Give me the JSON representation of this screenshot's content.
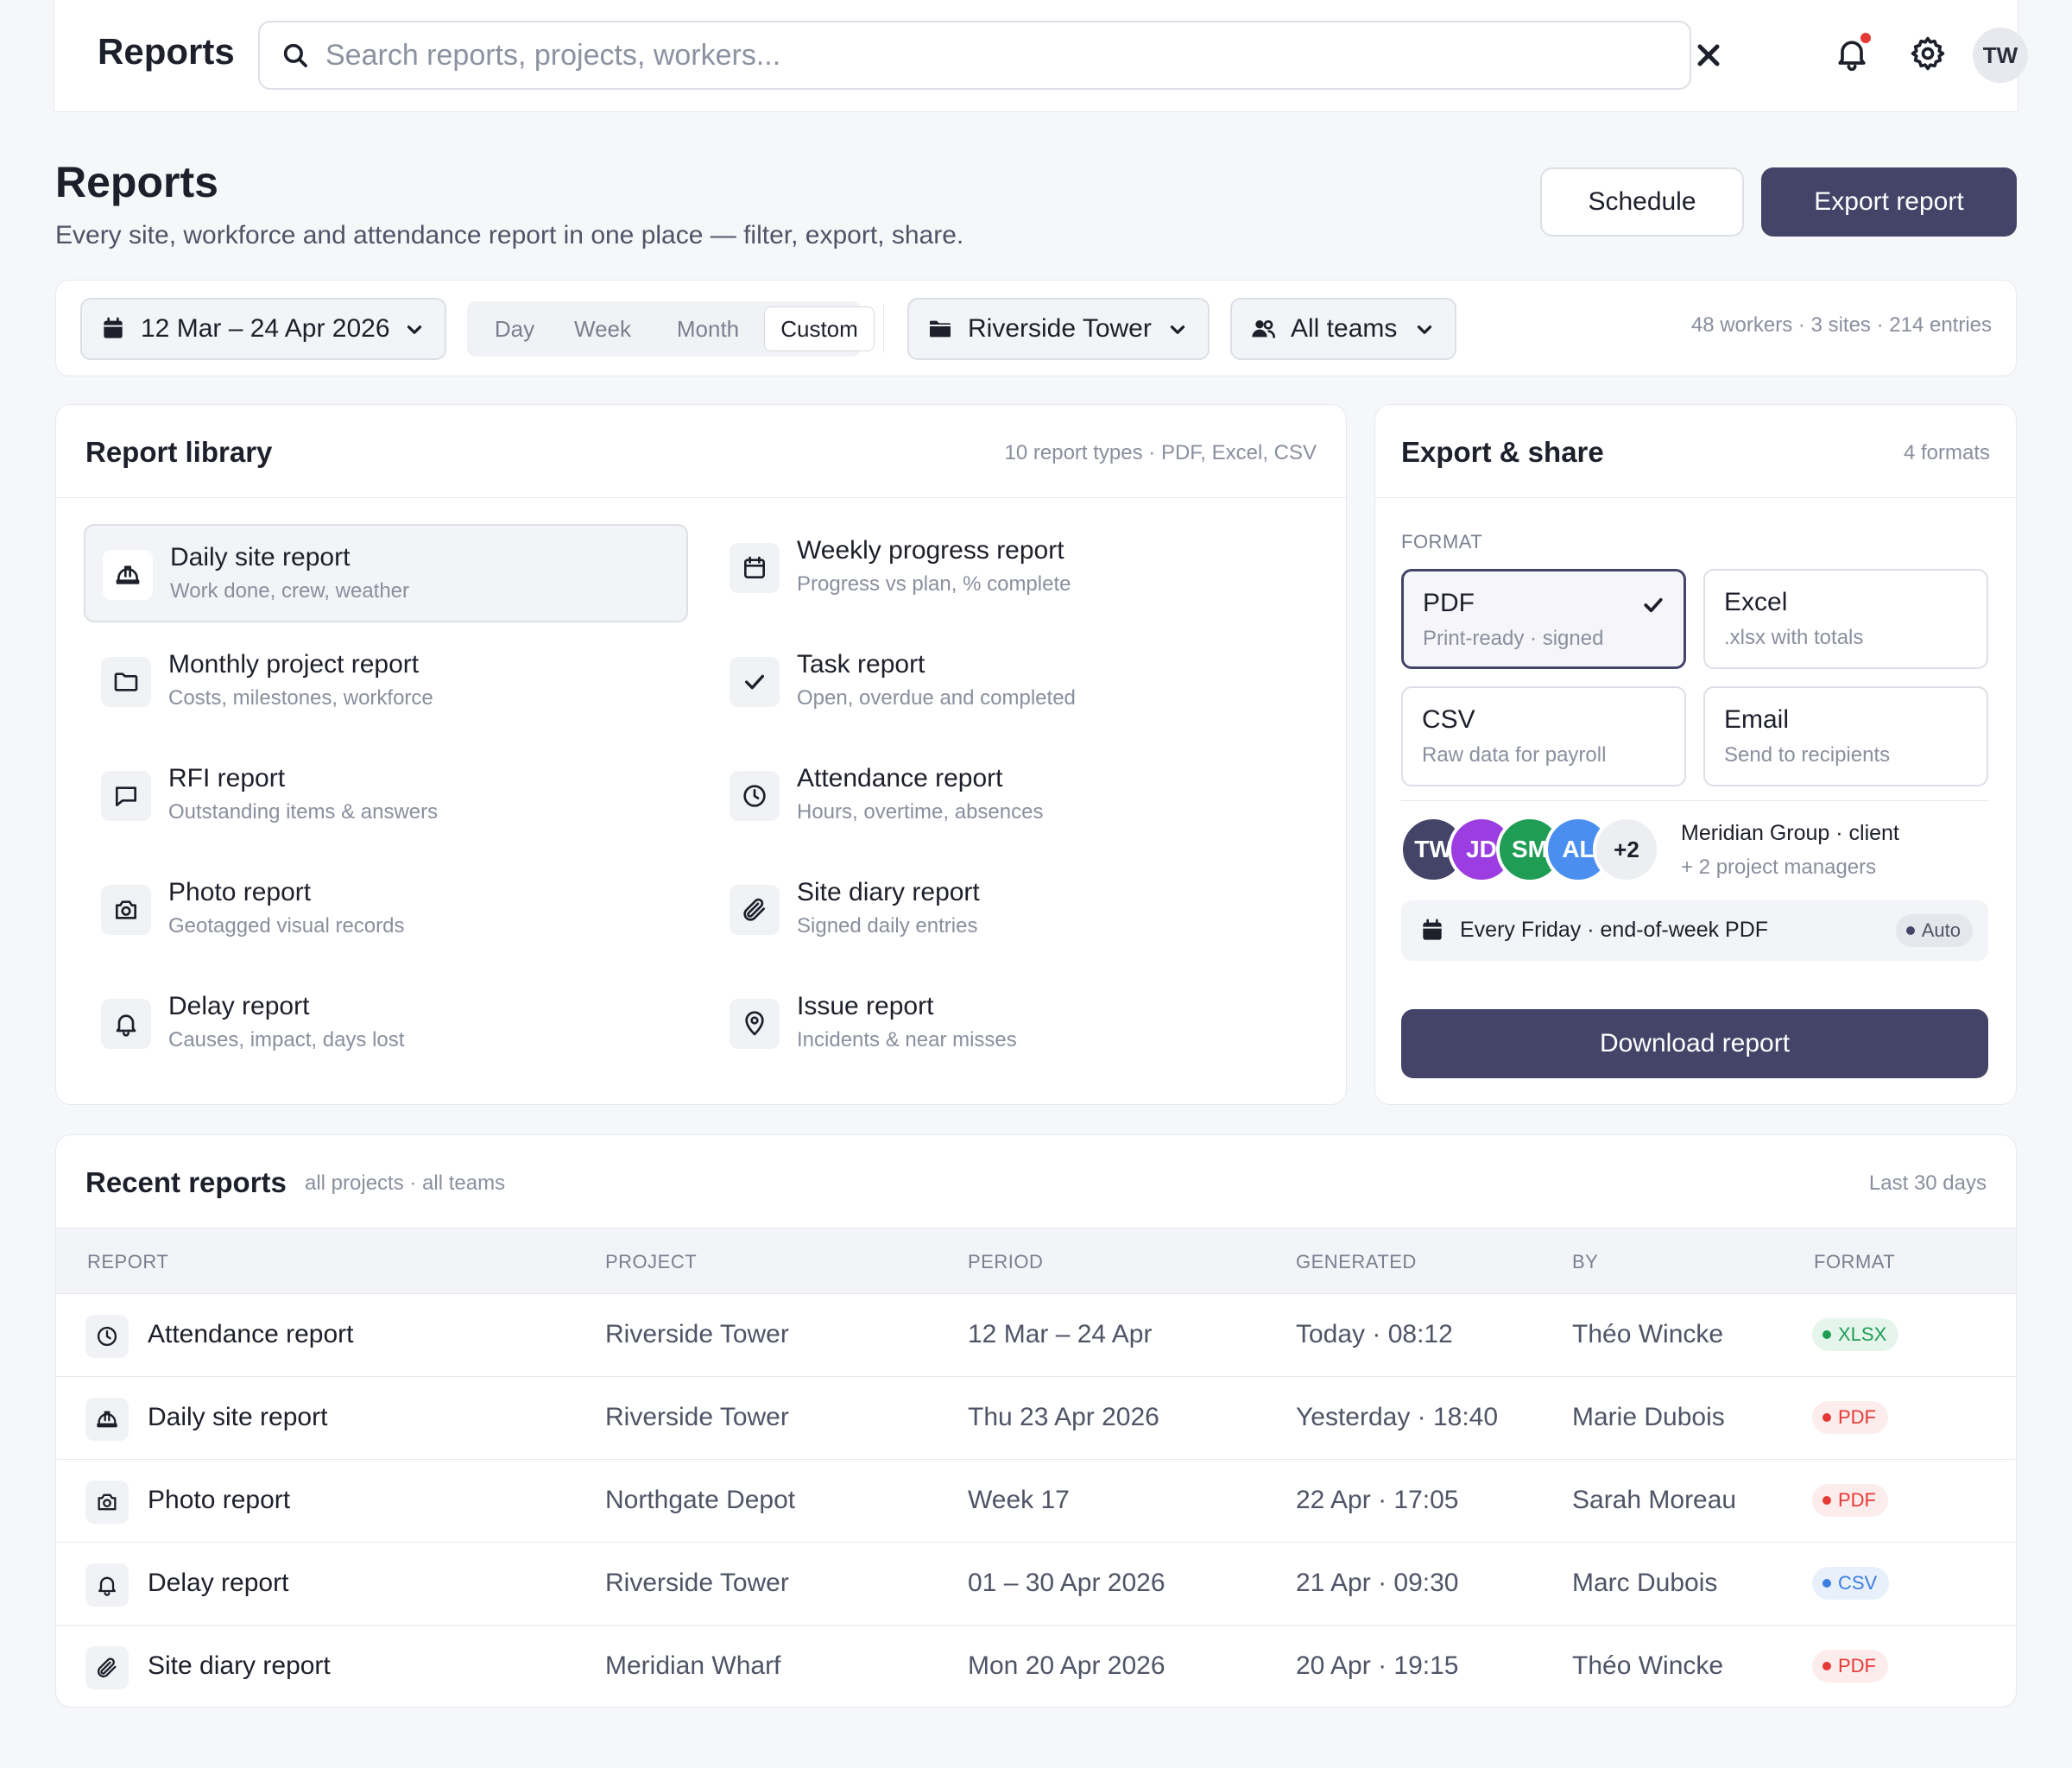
{
  "topbar": {
    "title": "Reports",
    "search_placeholder": "Search reports, projects, workers...",
    "user_initials": "TW"
  },
  "header": {
    "title": "Reports",
    "subtitle": "Every site, workforce and attendance report in one place — filter, export, share.",
    "schedule_label": "Schedule",
    "export_label": "Export report"
  },
  "filters": {
    "date_range": "12 Mar – 24 Apr 2026",
    "periods": [
      "Day",
      "Week",
      "Month",
      "Custom"
    ],
    "active_period": "Custom",
    "site": "Riverside Tower",
    "teams": "All teams",
    "stats": "48 workers · 3 sites · 214 entries"
  },
  "library": {
    "title": "Report library",
    "meta": "10 report types · PDF, Excel, CSV",
    "items": [
      {
        "name": "Daily site report",
        "desc": "Work done, crew, weather",
        "icon": "hardhat-icon"
      },
      {
        "name": "Weekly progress report",
        "desc": "Progress vs plan, % complete",
        "icon": "calendar-icon"
      },
      {
        "name": "Monthly project report",
        "desc": "Costs, milestones, workforce",
        "icon": "folder-icon"
      },
      {
        "name": "Task report",
        "desc": "Open, overdue and completed",
        "icon": "check-icon"
      },
      {
        "name": "RFI report",
        "desc": "Outstanding items & answers",
        "icon": "message-icon"
      },
      {
        "name": "Attendance report",
        "desc": "Hours, overtime, absences",
        "icon": "clock-icon"
      },
      {
        "name": "Photo report",
        "desc": "Geotagged visual records",
        "icon": "camera-icon"
      },
      {
        "name": "Site diary report",
        "desc": "Signed daily entries",
        "icon": "paperclip-icon"
      },
      {
        "name": "Delay report",
        "desc": "Causes, impact, days lost",
        "icon": "bell-icon"
      },
      {
        "name": "Issue report",
        "desc": "Incidents & near misses",
        "icon": "map-pin-icon"
      }
    ]
  },
  "export": {
    "title": "Export & share",
    "meta": "4 formats",
    "format_label": "FORMAT",
    "formats": [
      {
        "name": "PDF",
        "desc": "Print-ready · signed"
      },
      {
        "name": "Excel",
        "desc": ".xlsx with totals"
      },
      {
        "name": "CSV",
        "desc": "Raw data for payroll"
      },
      {
        "name": "Email",
        "desc": "Send to recipients"
      }
    ],
    "selected_format": "PDF",
    "recipients": [
      {
        "initials": "TW",
        "color": "#434468"
      },
      {
        "initials": "JD",
        "color": "#9b3de0"
      },
      {
        "initials": "SM",
        "color": "#1f9d55"
      },
      {
        "initials": "AL",
        "color": "#4a8ef0"
      }
    ],
    "more_recipients": "+2",
    "recipient_name": "Meridian Group · client",
    "recipient_sub": "+ 2 project managers",
    "schedule_text": "Every Friday · end-of-week PDF",
    "schedule_badge": "Auto",
    "download_label": "Download report"
  },
  "recent": {
    "title": "Recent reports",
    "subtitle": "all projects · all teams",
    "meta": "Last 30 days",
    "columns": [
      "REPORT",
      "PROJECT",
      "PERIOD",
      "GENERATED",
      "BY",
      "FORMAT"
    ],
    "rows": [
      {
        "report": "Attendance report",
        "icon": "clock-icon",
        "project": "Riverside Tower",
        "period": "12 Mar – 24 Apr",
        "generated": "Today · 08:12",
        "by": "Théo Wincke",
        "format": "XLSX",
        "format_color": "#1f9d55",
        "format_bg": "#e6f5ec"
      },
      {
        "report": "Daily site report",
        "icon": "hardhat-icon",
        "project": "Riverside Tower",
        "period": "Thu 23 Apr 2026",
        "generated": "Yesterday · 18:40",
        "by": "Marie Dubois",
        "format": "PDF",
        "format_color": "#e53935",
        "format_bg": "#fdecec"
      },
      {
        "report": "Photo report",
        "icon": "camera-icon",
        "project": "Northgate Depot",
        "period": "Week 17",
        "generated": "22 Apr · 17:05",
        "by": "Sarah Moreau",
        "format": "PDF",
        "format_color": "#e53935",
        "format_bg": "#fdecec"
      },
      {
        "report": "Delay report",
        "icon": "bell-icon",
        "project": "Riverside Tower",
        "period": "01 – 30 Apr 2026",
        "generated": "21 Apr · 09:30",
        "by": "Marc Dubois",
        "format": "CSV",
        "format_color": "#3b7de0",
        "format_bg": "#e8f0fc"
      },
      {
        "report": "Site diary report",
        "icon": "paperclip-icon",
        "project": "Meridian Wharf",
        "period": "Mon 20 Apr 2026",
        "generated": "20 Apr · 19:15",
        "by": "Théo Wincke",
        "format": "PDF",
        "format_color": "#e53935",
        "format_bg": "#fdecec"
      }
    ]
  }
}
